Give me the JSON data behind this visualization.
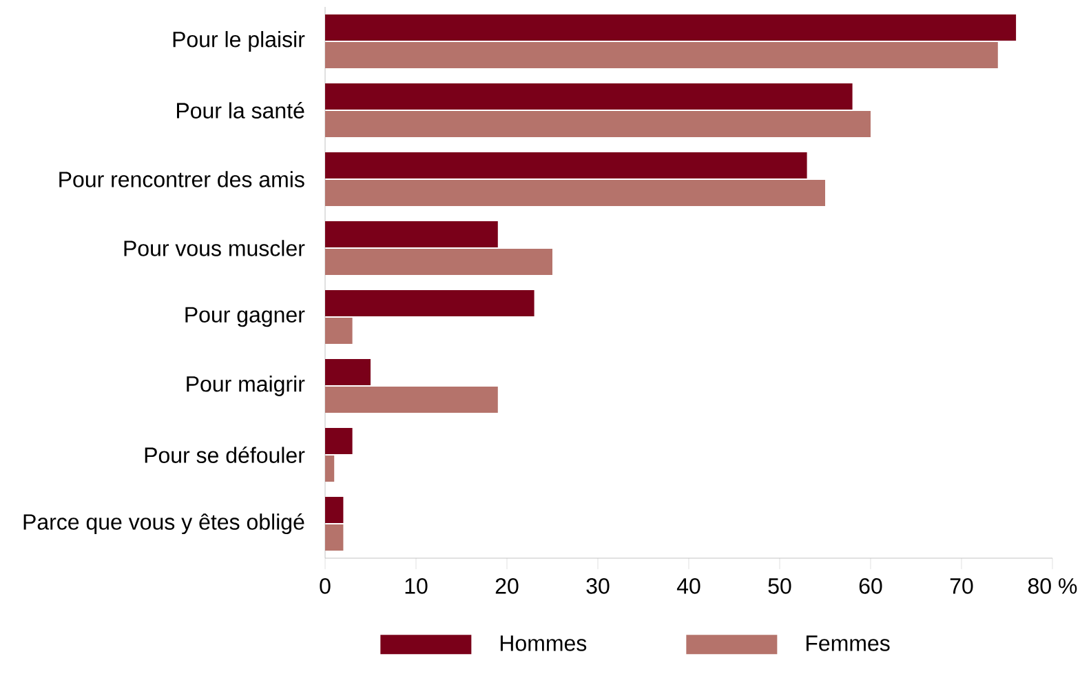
{
  "chart_data": {
    "type": "bar",
    "orientation": "horizontal",
    "categories": [
      "Pour le plaisir",
      "Pour la santé",
      "Pour rencontrer des amis",
      "Pour vous muscler",
      "Pour gagner",
      "Pour maigrir",
      "Pour se défouler",
      "Parce que vous y êtes obligé"
    ],
    "series": [
      {
        "name": "Hommes",
        "color": "#7a0019",
        "values": [
          76,
          58,
          53,
          19,
          23,
          5,
          3,
          2
        ]
      },
      {
        "name": "Femmes",
        "color": "#b5736b",
        "values": [
          74,
          60,
          55,
          25,
          3,
          19,
          1,
          2
        ]
      }
    ],
    "xlim": [
      0,
      80
    ],
    "xticks": [
      0,
      10,
      20,
      30,
      40,
      50,
      60,
      70,
      {
        "value": 80,
        "label": "80 %"
      }
    ],
    "grid": false,
    "legend": "bottom"
  }
}
